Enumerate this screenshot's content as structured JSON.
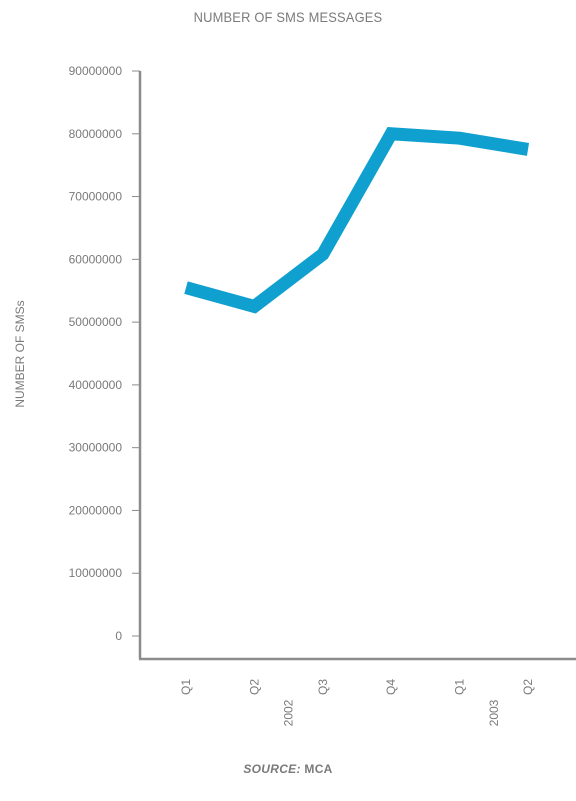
{
  "chart_data": {
    "type": "line",
    "title": "NUMBER OF SMS MESSAGES",
    "ylabel": "NUMBER OF SMSs",
    "xlabel": "",
    "categories": [
      "Q1",
      "Q2",
      "Q3",
      "Q4",
      "Q1",
      "Q2"
    ],
    "year_groups": [
      {
        "label": "2002",
        "start": 0,
        "end": 3
      },
      {
        "label": "2003",
        "start": 4,
        "end": 5
      }
    ],
    "series": [
      {
        "values": [
          55500000,
          52500000,
          60800000,
          80000000,
          79300000,
          77500000
        ],
        "color": "#0fa0cf"
      }
    ],
    "ylim": [
      0,
      90000000
    ],
    "yticks": [
      0,
      10000000,
      20000000,
      30000000,
      40000000,
      50000000,
      60000000,
      70000000,
      80000000,
      90000000
    ],
    "grid": false,
    "axis_color": "#8c8c8c"
  },
  "source": {
    "label": "SOURCE:",
    "value": "MCA"
  }
}
